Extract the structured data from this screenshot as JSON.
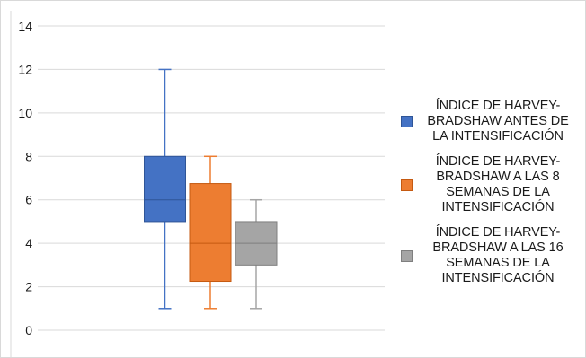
{
  "chart_data": {
    "type": "boxplot",
    "ylim": [
      0,
      14
    ],
    "yticks": [
      0,
      2,
      4,
      6,
      8,
      10,
      12,
      14
    ],
    "grid": true,
    "legend_position": "right",
    "series": [
      {
        "name": "ÍNDICE DE HARVEY-BRADSHAW ANTES DE LA INTENSIFICACIÓN",
        "min": 1,
        "q1": 5,
        "median": 6,
        "q3": 8,
        "max": 12,
        "color": "#4472C4",
        "stroke": "#2F5597"
      },
      {
        "name": "ÍNDICE DE HARVEY-BRADSHAW A LAS 8 SEMANAS DE LA INTENSIFICACIÓN",
        "min": 1,
        "q1": 2.25,
        "median": 4,
        "q3": 6.75,
        "max": 8,
        "color": "#ED7D31",
        "stroke": "#C55A11"
      },
      {
        "name": "ÍNDICE DE HARVEY-BRADSHAW A LAS 16 SEMANAS DE LA INTENSIFICACIÓN",
        "min": 1,
        "q1": 3,
        "median": 4,
        "q3": 5,
        "max": 6,
        "color": "#A5A5A5",
        "stroke": "#7F7F7F"
      }
    ]
  },
  "legend": {
    "items": [
      {
        "lines": [
          "ÍNDICE DE HARVEY-",
          "BRADSHAW ANTES DE",
          "LA INTENSIFICACIÓN"
        ]
      },
      {
        "lines": [
          "ÍNDICE DE HARVEY-",
          "BRADSHAW A LAS 8",
          "SEMANAS DE LA",
          "INTENSIFICACIÓN"
        ]
      },
      {
        "lines": [
          "ÍNDICE DE HARVEY-",
          "BRADSHAW A LAS 16",
          "SEMANAS DE LA",
          "INTENSIFICACIÓN"
        ]
      }
    ]
  }
}
